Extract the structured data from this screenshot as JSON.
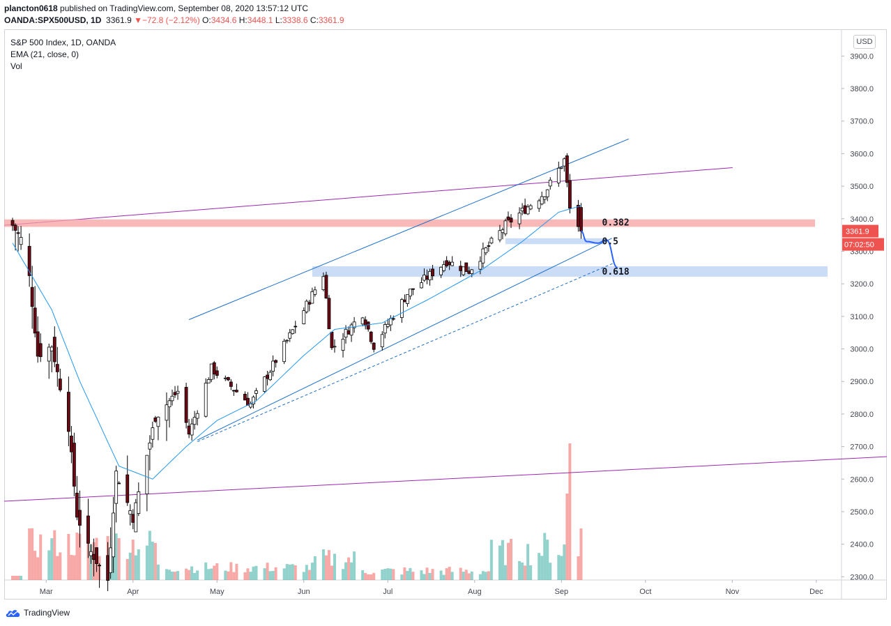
{
  "header": {
    "author": "plancton0618",
    "published_text": "published on TradingView.com, September 08, 2020 13:57:12 UTC",
    "symbol": "OANDA:SPX500USD, 1D",
    "last": "3361.9",
    "change": "▼−72.8 (−2.12%)",
    "o_label": "O:",
    "o_value": "3434.6",
    "h_label": "H:",
    "h_value": "3448.1",
    "l_label": "L:",
    "l_value": "3338.6",
    "c_label": "C:",
    "c_value": "3361.9"
  },
  "legend": {
    "title": "S&P 500 Index, 1D, OANDA",
    "ema": "EMA (21, close, 0)",
    "vol": "Vol"
  },
  "currency_button": "USD",
  "price_tag": "3361.9",
  "countdown_tag": "07:02:50",
  "footer": {
    "brand": "TradingView"
  },
  "colors": {
    "up": "#26a69a",
    "down": "#ef5350",
    "candle_body_down": "#6b0a14",
    "ema": "#2196f3",
    "trend": "#1e6fc9",
    "purple": "#9c27b0"
  },
  "chart_data": {
    "type": "candlestick",
    "title": "S&P 500 Index, 1D, OANDA",
    "y_ticks": [
      2300.0,
      2400.0,
      2500.0,
      2600.0,
      2700.0,
      2800.0,
      2900.0,
      3000.0,
      3100.0,
      3200.0,
      3300.0,
      3400.0,
      3500.0,
      3600.0,
      3700.0,
      3800.0,
      3900.0
    ],
    "ylim": [
      2290,
      3980
    ],
    "x_ticks": [
      "Mar",
      "Apr",
      "May",
      "Jun",
      "Jul",
      "Aug",
      "Sep",
      "Oct",
      "Nov",
      "Dec"
    ],
    "x_tick_dates": [
      "2020-03-01",
      "2020-04-01",
      "2020-05-01",
      "2020-06-01",
      "2020-07-01",
      "2020-08-01",
      "2020-09-01",
      "2020-10-01",
      "2020-11-01",
      "2020-12-01"
    ],
    "xlim": [
      "2020-02-15",
      "2020-12-10"
    ],
    "ohlc_anchor_closes": [
      {
        "date": "2020-02-18",
        "close": 3380
      },
      {
        "date": "2020-02-21",
        "close": 3338
      },
      {
        "date": "2020-02-24",
        "close": 3220
      },
      {
        "date": "2020-02-27",
        "close": 2980
      },
      {
        "date": "2020-03-03",
        "close": 3010
      },
      {
        "date": "2020-03-09",
        "close": 2760
      },
      {
        "date": "2020-03-12",
        "close": 2490
      },
      {
        "date": "2020-03-16",
        "close": 2390
      },
      {
        "date": "2020-03-23",
        "close": 2290
      },
      {
        "date": "2020-03-26",
        "close": 2620
      },
      {
        "date": "2020-04-01",
        "close": 2480
      },
      {
        "date": "2020-04-09",
        "close": 2790
      },
      {
        "date": "2020-04-17",
        "close": 2870
      },
      {
        "date": "2020-04-21",
        "close": 2740
      },
      {
        "date": "2020-04-29",
        "close": 2940
      },
      {
        "date": "2020-05-13",
        "close": 2830
      },
      {
        "date": "2020-05-27",
        "close": 3040
      },
      {
        "date": "2020-06-08",
        "close": 3230
      },
      {
        "date": "2020-06-11",
        "close": 3000
      },
      {
        "date": "2020-06-22",
        "close": 3110
      },
      {
        "date": "2020-06-26",
        "close": 3010
      },
      {
        "date": "2020-07-08",
        "close": 3170
      },
      {
        "date": "2020-07-22",
        "close": 3270
      },
      {
        "date": "2020-07-30",
        "close": 3240
      },
      {
        "date": "2020-08-12",
        "close": 3380
      },
      {
        "date": "2020-08-26",
        "close": 3480
      },
      {
        "date": "2020-09-02",
        "close": 3580
      },
      {
        "date": "2020-09-04",
        "close": 3430
      },
      {
        "date": "2020-09-08",
        "close": 3361.9
      }
    ],
    "ema_21_anchors": [
      {
        "date": "2020-02-17",
        "value": 3340
      },
      {
        "date": "2020-03-03",
        "value": 3120
      },
      {
        "date": "2020-03-13",
        "value": 2900
      },
      {
        "date": "2020-03-27",
        "value": 2640
      },
      {
        "date": "2020-04-08",
        "value": 2600
      },
      {
        "date": "2020-04-20",
        "value": 2700
      },
      {
        "date": "2020-05-01",
        "value": 2780
      },
      {
        "date": "2020-05-15",
        "value": 2840
      },
      {
        "date": "2020-06-01",
        "value": 2980
      },
      {
        "date": "2020-06-12",
        "value": 3060
      },
      {
        "date": "2020-06-29",
        "value": 3080
      },
      {
        "date": "2020-07-15",
        "value": 3150
      },
      {
        "date": "2020-08-03",
        "value": 3240
      },
      {
        "date": "2020-08-18",
        "value": 3330
      },
      {
        "date": "2020-08-31",
        "value": 3420
      },
      {
        "date": "2020-09-08",
        "value": 3440
      }
    ],
    "volume_peak_date": "2020-09-04",
    "fib_levels": [
      {
        "label": "0.382",
        "value": 3388
      },
      {
        "label": "0.5",
        "value": 3330
      },
      {
        "label": "0.618",
        "value": 3237
      }
    ],
    "resistance_zone": [
      3375,
      3398
    ],
    "support_zone_0_5": [
      3322,
      3340
    ],
    "support_zone_0_618": [
      3222,
      3254
    ],
    "projection_path": [
      {
        "date": "2020-09-08",
        "value": 3362
      },
      {
        "date": "2020-09-10",
        "value": 3330
      },
      {
        "date": "2020-09-14",
        "value": 3325
      },
      {
        "date": "2020-09-17",
        "value": 3335
      },
      {
        "date": "2020-09-21",
        "value": 3250
      }
    ]
  }
}
